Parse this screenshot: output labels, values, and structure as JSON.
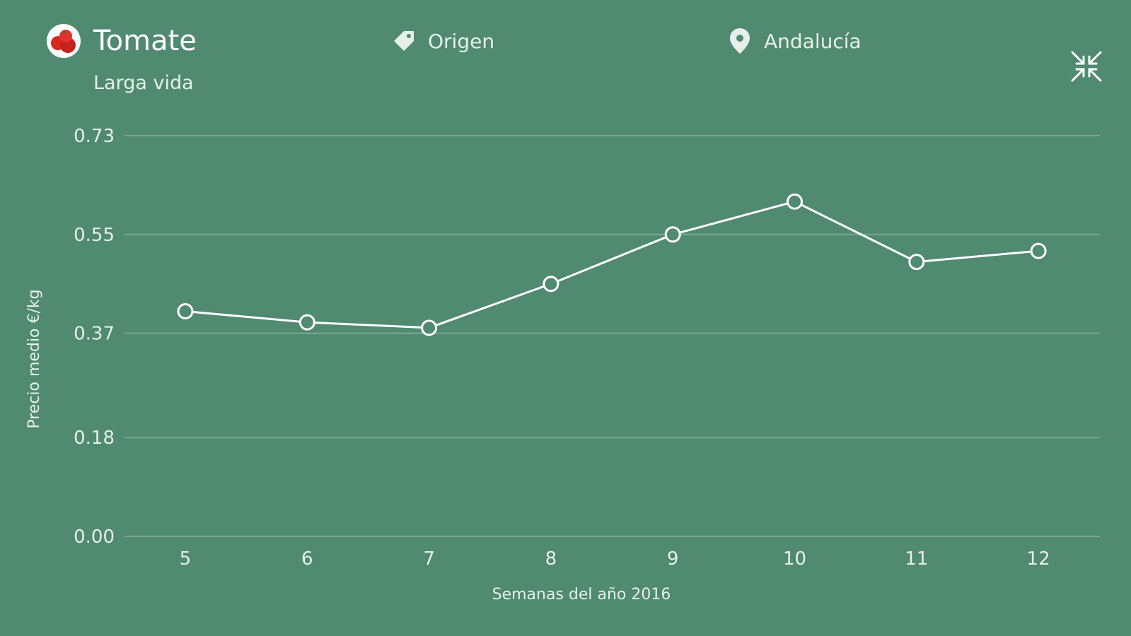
{
  "header": {
    "product_icon": "tomato-icon",
    "product_name": "Tomate",
    "product_variety": "Larga vida",
    "filters": [
      {
        "icon": "tag-icon",
        "label": "Origen"
      },
      {
        "icon": "location-pin-icon",
        "label": "Andalucía"
      }
    ],
    "collapse_icon": "collapse-arrows-icon"
  },
  "colors": {
    "background": "#508a70",
    "line": "#ffffff",
    "grid": "#7aa893",
    "tomato": "#d9291c"
  },
  "chart_data": {
    "type": "line",
    "categories": [
      "5",
      "6",
      "7",
      "8",
      "9",
      "10",
      "11",
      "12"
    ],
    "series": [
      {
        "values": [
          0.41,
          0.39,
          0.38,
          0.46,
          0.55,
          0.61,
          0.5,
          0.52
        ]
      }
    ],
    "yticks": [
      "0.00",
      "0.18",
      "0.37",
      "0.55",
      "0.73"
    ],
    "ylim": [
      0,
      0.73
    ],
    "xlabel": "Semanas del año 2016",
    "ylabel": "Precio medio €/kg",
    "grid": true
  }
}
